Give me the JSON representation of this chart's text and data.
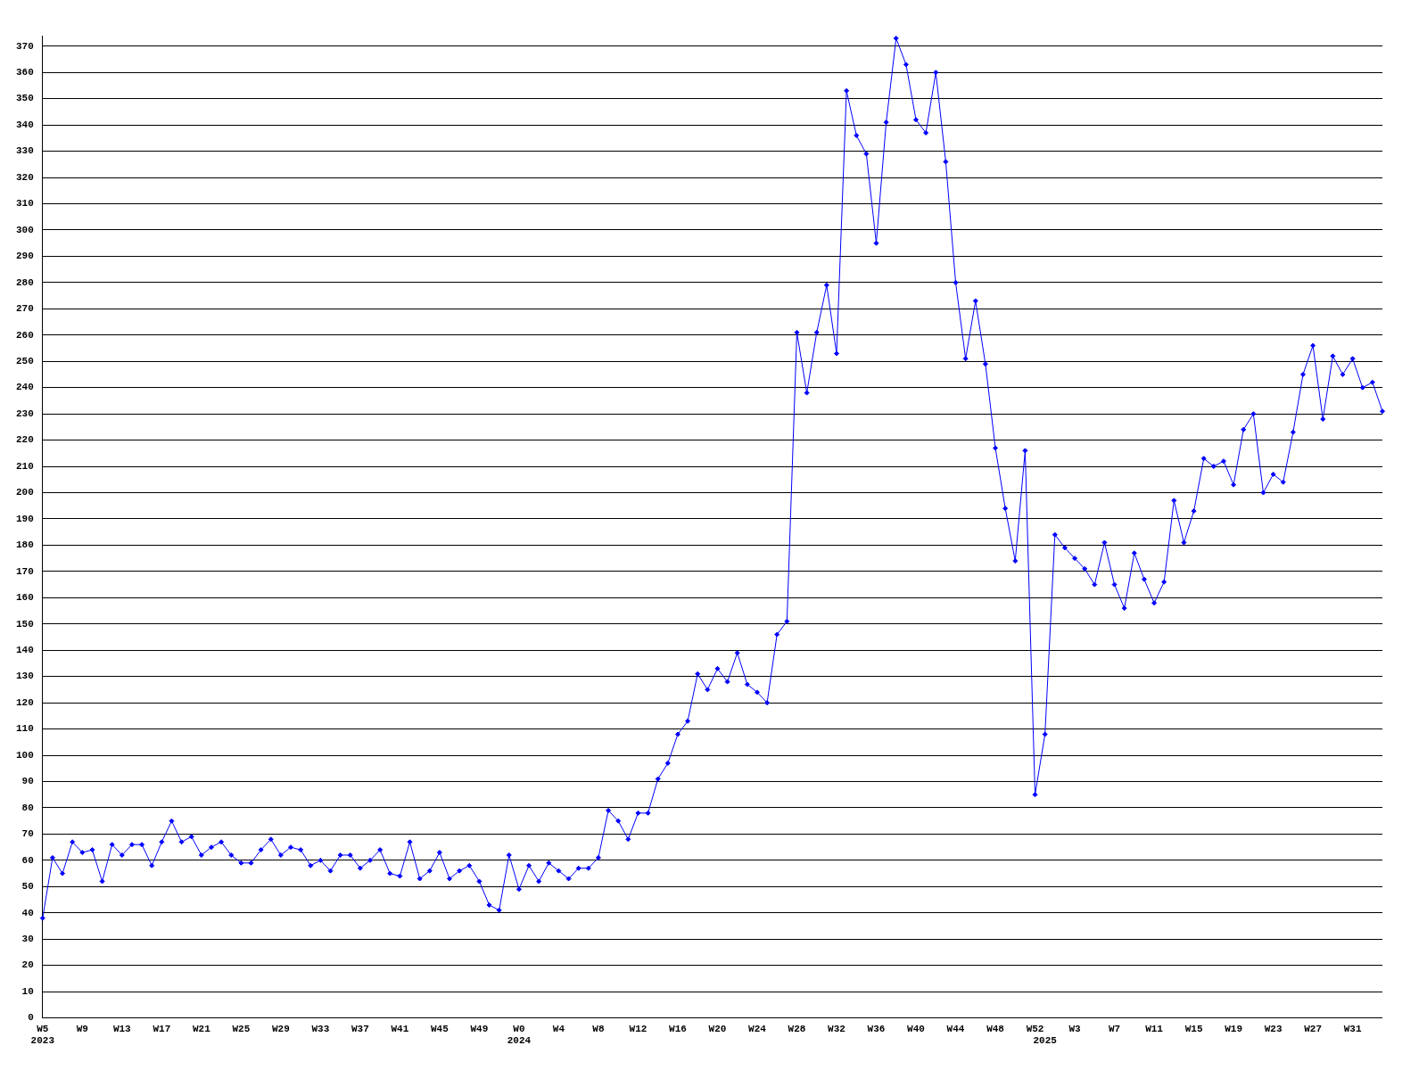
{
  "chart_data": {
    "type": "line",
    "categories": [
      "W5\n2023",
      null,
      null,
      null,
      "W9",
      null,
      null,
      null,
      "W13",
      null,
      null,
      null,
      "W17",
      null,
      null,
      null,
      "W21",
      null,
      null,
      null,
      "W25",
      null,
      null,
      null,
      "W29",
      null,
      null,
      null,
      "W33",
      null,
      null,
      null,
      "W37",
      null,
      null,
      null,
      "W41",
      null,
      null,
      null,
      "W45",
      null,
      null,
      null,
      "W49",
      null,
      null,
      null,
      "W0\n2024",
      null,
      null,
      null,
      "W4",
      null,
      null,
      null,
      "W8",
      null,
      null,
      null,
      "W12",
      null,
      null,
      null,
      "W16",
      null,
      null,
      null,
      "W20",
      null,
      null,
      null,
      "W24",
      null,
      null,
      null,
      "W28",
      null,
      null,
      null,
      "W32",
      null,
      null,
      null,
      "W36",
      null,
      null,
      null,
      "W40",
      null,
      null,
      null,
      "W44",
      null,
      null,
      null,
      "W48",
      null,
      null,
      null,
      "W52",
      "\n2025",
      null,
      null,
      "W3",
      null,
      null,
      null,
      "W7",
      null,
      null,
      null,
      "W11",
      null,
      null,
      null,
      "W15",
      null,
      null,
      null,
      "W19",
      null,
      null,
      null,
      "W23",
      null,
      null,
      null,
      "W27",
      null,
      null,
      null,
      "W31",
      null,
      null,
      null
    ],
    "series": [
      {
        "color": "#0000ff",
        "values": [
          38,
          61,
          55,
          67,
          63,
          64,
          52,
          66,
          62,
          66,
          66,
          58,
          67,
          75,
          67,
          69,
          62,
          65,
          67,
          62,
          59,
          59,
          64,
          68,
          62,
          65,
          64,
          58,
          60,
          56,
          62,
          62,
          57,
          60,
          64,
          55,
          54,
          67,
          53,
          56,
          63,
          53,
          56,
          58,
          52,
          43,
          41,
          62,
          49,
          58,
          52,
          59,
          56,
          53,
          57,
          57,
          61,
          79,
          75,
          68,
          78,
          78,
          91,
          97,
          108,
          113,
          131,
          125,
          133,
          128,
          139,
          127,
          124,
          120,
          146,
          151,
          261,
          238,
          261,
          279,
          253,
          353,
          336,
          329,
          295,
          341,
          373,
          363,
          342,
          337,
          360,
          326,
          280,
          251,
          273,
          249,
          217,
          194,
          174,
          216,
          85,
          108,
          184,
          179,
          175,
          171,
          165,
          181,
          165,
          156,
          177,
          167,
          158,
          166,
          197,
          181,
          193,
          213,
          210,
          212,
          203,
          224,
          230,
          200,
          207,
          204,
          223,
          245,
          256,
          228,
          252,
          245,
          251,
          240,
          242,
          231
        ]
      }
    ],
    "ylim": [
      0,
      374
    ],
    "yticks": [
      0,
      10,
      20,
      30,
      40,
      50,
      60,
      70,
      80,
      90,
      100,
      110,
      120,
      130,
      140,
      150,
      160,
      170,
      180,
      190,
      200,
      210,
      220,
      230,
      240,
      250,
      260,
      270,
      280,
      290,
      300,
      310,
      320,
      330,
      340,
      350,
      360,
      370
    ],
    "grid": "y",
    "marker": "diamond"
  }
}
